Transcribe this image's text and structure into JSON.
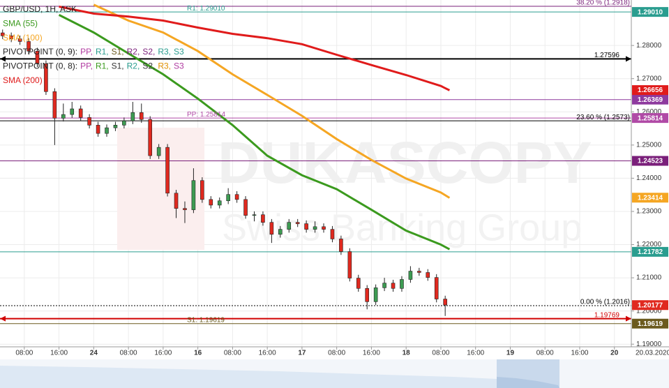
{
  "chart_data": {
    "type": "candlestick",
    "title": "GBP/USD, 1H, ASK",
    "watermark": "DUKASCOPY",
    "watermark_sub": "Swiss Banking Group",
    "date_label": "20.03.2020",
    "x": [
      3,
      5,
      7,
      9,
      11,
      13,
      15,
      17,
      19,
      21,
      23,
      25,
      27,
      29,
      31,
      33,
      35,
      37,
      39,
      41,
      43,
      45,
      47,
      49,
      51,
      53,
      55,
      57,
      59,
      61,
      63,
      65,
      67,
      69,
      71,
      73,
      75,
      77,
      79,
      81,
      83,
      85,
      87,
      89,
      91,
      93,
      95,
      97,
      99,
      101,
      103,
      105
    ],
    "open": [
      1.2838,
      1.2829,
      1.282,
      1.2812,
      1.2783,
      1.2745,
      1.2661,
      1.2581,
      1.2592,
      1.2609,
      1.2583,
      1.256,
      1.2535,
      1.2552,
      1.256,
      1.2573,
      1.2598,
      1.2577,
      1.2468,
      1.2493,
      1.2355,
      1.2309,
      1.2305,
      1.2393,
      1.2336,
      1.2319,
      1.2332,
      1.2351,
      1.2336,
      1.2288,
      1.229,
      1.2267,
      1.2231,
      1.2246,
      1.2267,
      1.2263,
      1.2246,
      1.2254,
      1.2246,
      1.2217,
      1.2179,
      1.2099,
      1.2068,
      1.2028,
      1.207,
      1.2084,
      1.2068,
      1.2095,
      1.212,
      1.2116,
      1.2101,
      1.2036
    ],
    "high": [
      1.2848,
      1.2839,
      1.283,
      1.2822,
      1.2793,
      1.2755,
      1.2671,
      1.2625,
      1.263,
      1.2619,
      1.2593,
      1.257,
      1.2562,
      1.257,
      1.2583,
      1.263,
      1.2625,
      1.2587,
      1.2503,
      1.2503,
      1.2365,
      1.233,
      1.243,
      1.2403,
      1.2346,
      1.2342,
      1.237,
      1.2361,
      1.2346,
      1.23,
      1.23,
      1.2277,
      1.2256,
      1.2277,
      1.2277,
      1.2273,
      1.227,
      1.2264,
      1.2256,
      1.2227,
      1.2189,
      1.2109,
      1.2078,
      1.208,
      1.21,
      1.2094,
      1.2105,
      1.2135,
      1.213,
      1.2126,
      1.2111,
      1.2046
    ],
    "low": [
      1.2819,
      1.281,
      1.2802,
      1.2773,
      1.2735,
      1.2651,
      1.25,
      1.2571,
      1.2582,
      1.2573,
      1.255,
      1.2525,
      1.2525,
      1.2542,
      1.255,
      1.2563,
      1.2567,
      1.2458,
      1.2458,
      1.2345,
      1.228,
      1.2265,
      1.2295,
      1.2326,
      1.2309,
      1.2309,
      1.2322,
      1.2326,
      1.2278,
      1.227,
      1.2257,
      1.2205,
      1.2221,
      1.2236,
      1.2253,
      1.2236,
      1.2236,
      1.2236,
      1.2207,
      1.2169,
      1.2089,
      1.2058,
      1.2005,
      1.2018,
      1.206,
      1.2058,
      1.2058,
      1.2085,
      1.2106,
      1.2091,
      1.2026,
      1.1985
    ],
    "close": [
      1.2829,
      1.282,
      1.2812,
      1.2783,
      1.2745,
      1.2661,
      1.2581,
      1.2592,
      1.2609,
      1.2583,
      1.256,
      1.2535,
      1.2552,
      1.256,
      1.2573,
      1.2598,
      1.2577,
      1.2468,
      1.2493,
      1.2355,
      1.2309,
      1.2305,
      1.2393,
      1.2336,
      1.2319,
      1.2332,
      1.2351,
      1.2336,
      1.2288,
      1.229,
      1.2267,
      1.2231,
      1.2246,
      1.2267,
      1.2263,
      1.2246,
      1.2254,
      1.2246,
      1.2217,
      1.2179,
      1.2099,
      1.2068,
      1.2028,
      1.207,
      1.2084,
      1.2068,
      1.2095,
      1.212,
      1.2116,
      1.2101,
      1.2036,
      1.2018
    ],
    "up_color": "#3d9b52",
    "down_color": "#e0291f",
    "last": 1.20177,
    "last_color": "#e0291f",
    "series": [
      {
        "name": "SMA (55)",
        "color": "#3b9a1e",
        "x": [
          16,
          24,
          32,
          40,
          48,
          56,
          64,
          72,
          80,
          88,
          96,
          104,
          106
        ],
        "values": [
          1.2892,
          1.2839,
          1.2776,
          1.2713,
          1.264,
          1.256,
          1.2468,
          1.2409,
          1.2367,
          1.2305,
          1.2242,
          1.22,
          1.2186
        ]
      },
      {
        "name": "SMA (100)",
        "color": "#f5a623",
        "x": [
          24,
          32,
          40,
          48,
          56,
          64,
          72,
          80,
          88,
          96,
          104,
          106
        ],
        "values": [
          1.2923,
          1.2875,
          1.2839,
          1.2783,
          1.2713,
          1.2651,
          1.2588,
          1.2518,
          1.2455,
          1.2399,
          1.2357,
          1.2341
        ],
        "last": 1.23414
      },
      {
        "name": "SMA (200)",
        "color": "#e01b1b",
        "x": [
          16,
          24,
          32,
          40,
          48,
          56,
          64,
          72,
          80,
          88,
          96,
          104,
          106
        ],
        "values": [
          1.2917,
          1.2896,
          1.2887,
          1.2875,
          1.2854,
          1.2835,
          1.2822,
          1.2804,
          1.2772,
          1.2741,
          1.2711,
          1.2678,
          1.2665
        ],
        "last": 1.26656
      }
    ],
    "pivots": [
      {
        "name": "PIVOTPOINT (0, 9):",
        "items": [
          {
            "text": "PP,",
            "color": "#b03aa0"
          },
          {
            "text": "R1,",
            "color": "#2a9d8f"
          },
          {
            "text": "S1,",
            "color": "#6b5a1e"
          },
          {
            "text": "R2,",
            "color": "#7a1f7a"
          },
          {
            "text": "S2,",
            "color": "#7a1f7a"
          },
          {
            "text": "R3,",
            "color": "#2a9d8f"
          },
          {
            "text": "S3",
            "color": "#2a9d8f"
          }
        ]
      },
      {
        "name": "PIVOTPOINT (0, 8):",
        "items": [
          {
            "text": "PP,",
            "color": "#b03aa0"
          },
          {
            "text": "R1,",
            "color": "#3b9a1e"
          },
          {
            "text": "S1,",
            "color": "#333333"
          },
          {
            "text": "R2,",
            "color": "#2a9d8f"
          },
          {
            "text": "S2,",
            "color": "#333333"
          },
          {
            "text": "R3,",
            "color": "#e09000"
          },
          {
            "text": "S3",
            "color": "#b03aa0"
          }
        ]
      }
    ],
    "levels": [
      {
        "kind": "fib",
        "value": 1.2918,
        "note": "38.20 % (1.2918)",
        "color": "#7a1f7a"
      },
      {
        "kind": "pivot",
        "value": 1.2901,
        "label": "1.29010",
        "note": "R1: 1.29010",
        "color": "#2a9d8f"
      },
      {
        "kind": "drawn",
        "value": 1.27596,
        "color": "#000000"
      },
      {
        "kind": "pivot",
        "value": 1.26369,
        "color": "#8e3a9e"
      },
      {
        "kind": "pivot",
        "value": 1.25814,
        "note": "PP: 1.25814",
        "color": "#b04aa6"
      },
      {
        "kind": "fib",
        "value": 1.2573,
        "note": "23.60 % (1.2573)",
        "color": "#000000"
      },
      {
        "kind": "pivot",
        "value": 1.24523,
        "color": "#7a1f7a"
      },
      {
        "kind": "pivot",
        "value": 1.21782,
        "color": "#2a9d8f"
      },
      {
        "kind": "fib",
        "value": 1.2016,
        "note": "0.00 % (1.2016)",
        "color": "#000000"
      },
      {
        "kind": "drawn",
        "value": 1.19769,
        "color": "#d00000"
      },
      {
        "kind": "pivot",
        "value": 1.19619,
        "note": "S1: 1.19619",
        "color": "#6b5a1e"
      }
    ],
    "xlim": [
      2.4,
      147.9
    ],
    "xticks": [
      {
        "value": 8,
        "label": "08:00"
      },
      {
        "value": 16,
        "label": "16:00"
      },
      24,
      {
        "value": 32,
        "label": "08:00"
      },
      {
        "value": 40,
        "label": "16:00"
      },
      {
        "value": 48,
        "label": "16"
      },
      {
        "value": 56,
        "label": "08:00"
      },
      {
        "value": 64,
        "label": "16:00"
      },
      {
        "value": 72,
        "label": "17"
      },
      {
        "value": 80,
        "label": "08:00"
      },
      {
        "value": 88,
        "label": "16:00"
      },
      {
        "value": 96,
        "label": "18"
      },
      {
        "value": 104,
        "label": "08:00"
      },
      {
        "value": 112,
        "label": "16:00"
      },
      {
        "value": 120,
        "label": "19"
      },
      {
        "value": 128,
        "label": "08:00"
      },
      {
        "value": 136,
        "label": "16:00"
      },
      {
        "value": 144,
        "label": "20"
      }
    ],
    "ylim": [
      1.1892,
      1.2937
    ],
    "yticks": [
      {
        "value": 1.28,
        "label": "1.28000"
      },
      {
        "value": 1.27,
        "label": "1.27000"
      },
      {
        "value": 1.26,
        "label": "1.26000"
      },
      {
        "value": 1.25,
        "label": "1.25000"
      },
      {
        "value": 1.24,
        "label": "1.24000"
      },
      {
        "value": 1.23,
        "label": "1.23000"
      },
      {
        "value": 1.22,
        "label": "1.22000"
      },
      {
        "value": 1.21,
        "label": "1.21000"
      },
      {
        "value": 1.2,
        "label": "1.20000"
      },
      {
        "value": 1.19,
        "label": "1.19000"
      }
    ],
    "grid": true
  }
}
